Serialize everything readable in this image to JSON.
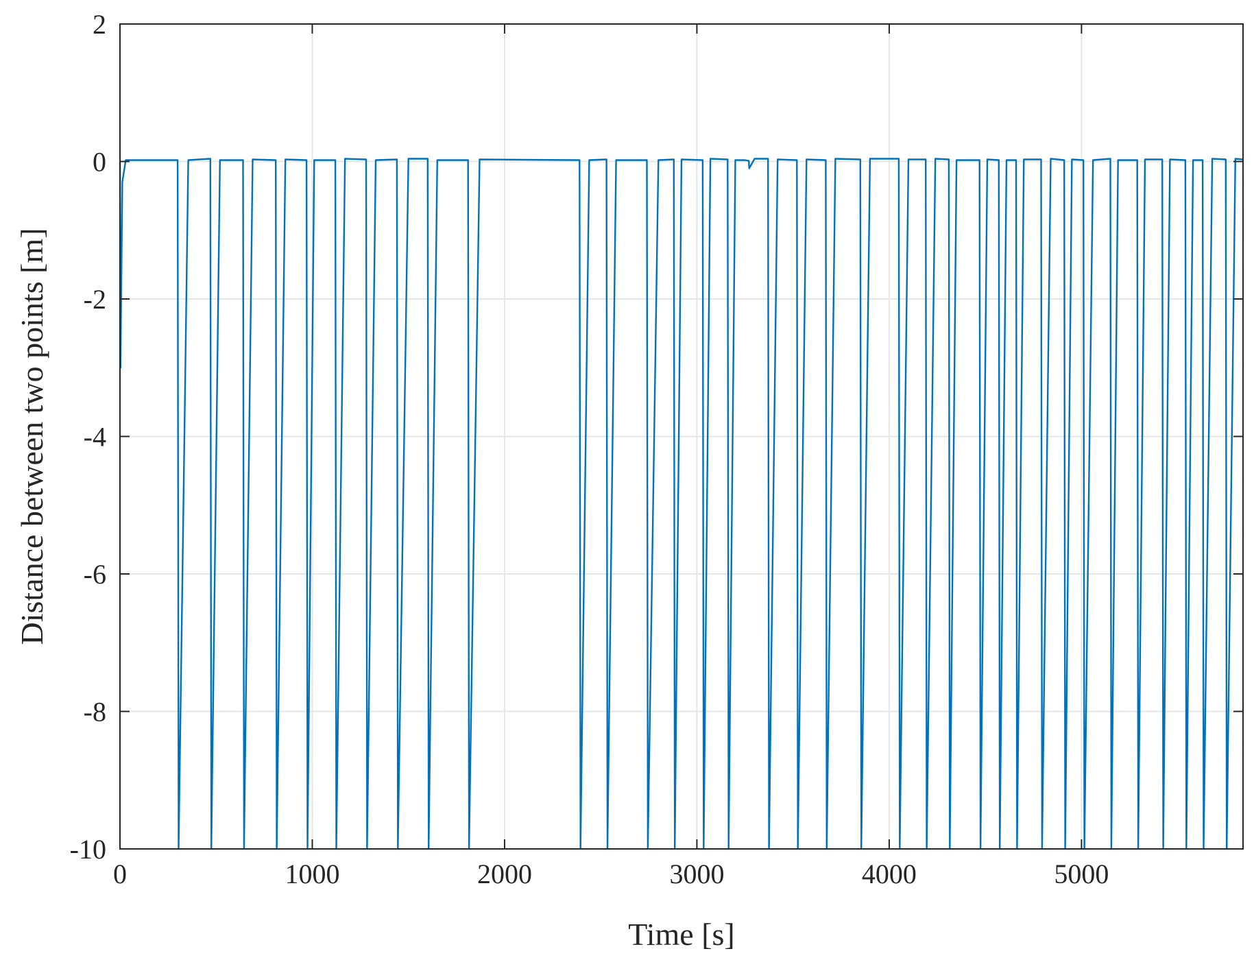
{
  "chart_data": {
    "type": "line",
    "xlabel": "Time [s]",
    "ylabel": "Distance between two points [m]",
    "xlim": [
      0,
      5840
    ],
    "ylim": [
      -10,
      2
    ],
    "xticks": [
      0,
      1000,
      2000,
      3000,
      4000,
      5000
    ],
    "yticks": [
      2,
      0,
      -2,
      -4,
      -6,
      -8,
      -10
    ],
    "xtick_labels": [
      "0",
      "1000",
      "2000",
      "3000",
      "4000",
      "5000"
    ],
    "ytick_labels": [
      "2",
      "0",
      "-2",
      "-4",
      "-6",
      "-8",
      "-10"
    ],
    "grid": true,
    "colors": {
      "series": "#0072BD",
      "axis": "#262626",
      "grid": "#e6e6e6"
    },
    "series": [
      {
        "values_note": "",
        "x": [
          0,
          3,
          12,
          30,
          300,
          305,
          355,
          470,
          475,
          520,
          640,
          645,
          690,
          810,
          815,
          860,
          970,
          975,
          1010,
          1120,
          1125,
          1170,
          1280,
          1285,
          1330,
          1440,
          1445,
          1500,
          1600,
          1605,
          1650,
          1810,
          1815,
          1870,
          2390,
          2395,
          2440,
          2530,
          2535,
          2580,
          2740,
          2745,
          2800,
          2880,
          2885,
          2920,
          3030,
          3035,
          3070,
          3160,
          3165,
          3200,
          3250,
          3270,
          3272,
          3300,
          3370,
          3375,
          3420,
          3520,
          3525,
          3570,
          3670,
          3675,
          3720,
          3850,
          3855,
          3900,
          4050,
          4055,
          4100,
          4190,
          4195,
          4240,
          4310,
          4315,
          4350,
          4470,
          4475,
          4510,
          4570,
          4575,
          4610,
          4660,
          4665,
          4700,
          4790,
          4795,
          4840,
          4910,
          4915,
          4950,
          5010,
          5015,
          5060,
          5150,
          5155,
          5190,
          5290,
          5295,
          5330,
          5420,
          5425,
          5460,
          5540,
          5545,
          5580,
          5630,
          5635,
          5680,
          5750,
          5755,
          5800,
          5840
        ],
        "y": [
          0,
          -3,
          -0.3,
          0.02,
          0.02,
          -10,
          0.02,
          0.04,
          -10,
          0.02,
          0.02,
          -10,
          0.03,
          0.02,
          -10,
          0.03,
          0.02,
          -10,
          0.02,
          0.02,
          -10,
          0.04,
          0.03,
          -10,
          0.02,
          0.03,
          -10,
          0.04,
          0.04,
          -10,
          0.02,
          0.02,
          -10,
          0.03,
          0.02,
          -10,
          0.02,
          0.03,
          -10,
          0.02,
          0.02,
          -10,
          0.02,
          0.03,
          -10,
          0.03,
          0.02,
          -10,
          0.04,
          0.03,
          -10,
          0.02,
          0.02,
          0.01,
          -0.1,
          0.04,
          0.04,
          -10,
          0.03,
          0.02,
          -10,
          0.03,
          0.02,
          -10,
          0.04,
          0.03,
          -10,
          0.04,
          0.04,
          -10,
          0.03,
          0.03,
          -10,
          0.04,
          0.03,
          -10,
          0.02,
          0.02,
          -10,
          0.03,
          0.02,
          -10,
          0.02,
          0.02,
          -10,
          0.03,
          0.03,
          -10,
          0.04,
          0.02,
          -10,
          0.03,
          0.02,
          -10,
          0.02,
          0.04,
          -10,
          0.02,
          0.02,
          -10,
          0.03,
          0.03,
          -10,
          0.03,
          0.02,
          -10,
          0.02,
          0.02,
          -10,
          0.04,
          0.03,
          -10,
          0.04,
          0.03
        ]
      }
    ]
  }
}
